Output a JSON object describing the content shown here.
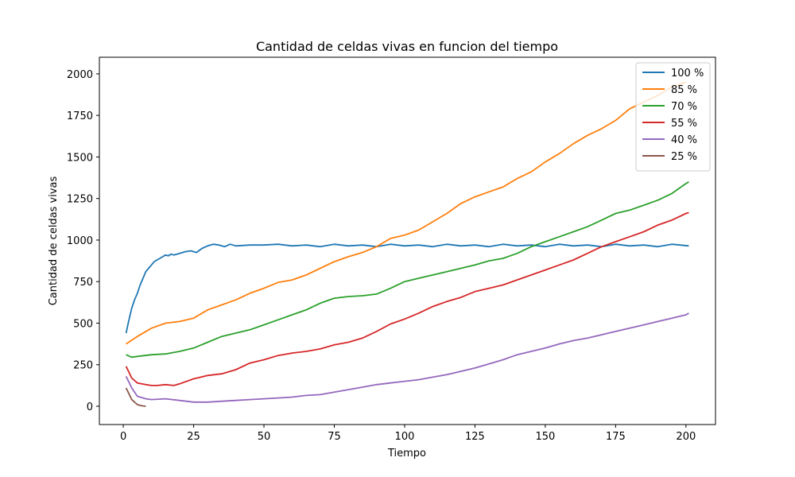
{
  "chart_data": {
    "type": "line",
    "title": "Cantidad de celdas vivas en funcion del tiempo",
    "xlabel": "Tiempo",
    "ylabel": "Cantidad de celdas vivas",
    "xlim": [
      -8.5,
      210.5
    ],
    "ylim": [
      -110,
      2100
    ],
    "xticks": [
      0,
      25,
      50,
      75,
      100,
      125,
      150,
      175,
      200
    ],
    "yticks": [
      0,
      250,
      500,
      750,
      1000,
      1250,
      1500,
      1750,
      2000
    ],
    "legend": "top-right",
    "grid": false,
    "series": [
      {
        "name": "100 %",
        "color": "#1f77b4",
        "x": [
          1,
          2,
          3,
          4,
          5,
          6,
          7,
          8,
          9,
          10,
          11,
          12,
          13,
          14,
          15,
          16,
          17,
          18,
          20,
          22,
          24,
          26,
          28,
          30,
          32,
          34,
          36,
          38,
          40,
          45,
          50,
          55,
          60,
          65,
          70,
          75,
          80,
          85,
          90,
          95,
          100,
          105,
          110,
          115,
          120,
          125,
          130,
          135,
          140,
          145,
          150,
          155,
          160,
          165,
          170,
          175,
          180,
          185,
          190,
          195,
          201
        ],
        "y": [
          440,
          520,
          590,
          640,
          680,
          730,
          770,
          810,
          830,
          850,
          870,
          880,
          890,
          900,
          910,
          905,
          915,
          910,
          920,
          930,
          935,
          925,
          950,
          965,
          975,
          970,
          960,
          975,
          965,
          970,
          970,
          975,
          965,
          970,
          960,
          975,
          965,
          970,
          960,
          975,
          965,
          970,
          960,
          975,
          965,
          970,
          960,
          975,
          965,
          970,
          960,
          975,
          965,
          970,
          960,
          975,
          965,
          970,
          960,
          975,
          965
        ]
      },
      {
        "name": "85 %",
        "color": "#ff7f0e",
        "x": [
          1,
          5,
          10,
          15,
          20,
          25,
          30,
          35,
          40,
          45,
          50,
          55,
          60,
          65,
          70,
          75,
          80,
          85,
          90,
          95,
          100,
          105,
          110,
          115,
          120,
          125,
          130,
          135,
          140,
          145,
          150,
          155,
          160,
          165,
          170,
          175,
          180,
          185,
          190,
          195,
          200
        ],
        "y": [
          375,
          420,
          470,
          500,
          510,
          530,
          580,
          610,
          640,
          680,
          710,
          745,
          760,
          790,
          830,
          870,
          900,
          925,
          960,
          1010,
          1030,
          1060,
          1110,
          1160,
          1220,
          1260,
          1290,
          1320,
          1370,
          1410,
          1470,
          1520,
          1580,
          1630,
          1670,
          1720,
          1790,
          1830,
          1870,
          1920,
          1950
        ]
      },
      {
        "name": "70 %",
        "color": "#2ca02c",
        "x": [
          1,
          3,
          5,
          10,
          15,
          20,
          25,
          30,
          35,
          40,
          45,
          50,
          55,
          60,
          65,
          70,
          75,
          80,
          85,
          90,
          95,
          100,
          105,
          110,
          115,
          120,
          125,
          130,
          135,
          140,
          145,
          150,
          155,
          160,
          165,
          170,
          175,
          180,
          185,
          190,
          195,
          200,
          201
        ],
        "y": [
          310,
          295,
          300,
          310,
          315,
          330,
          350,
          385,
          420,
          440,
          460,
          490,
          520,
          550,
          580,
          620,
          650,
          660,
          665,
          675,
          710,
          750,
          770,
          790,
          810,
          830,
          850,
          875,
          890,
          920,
          960,
          990,
          1020,
          1050,
          1080,
          1120,
          1160,
          1180,
          1210,
          1240,
          1280,
          1340,
          1350
        ]
      },
      {
        "name": "55 %",
        "color": "#d62728",
        "x": [
          1,
          3,
          5,
          8,
          10,
          12,
          15,
          18,
          20,
          25,
          30,
          35,
          40,
          45,
          50,
          55,
          60,
          65,
          70,
          75,
          80,
          85,
          90,
          95,
          100,
          105,
          110,
          115,
          120,
          125,
          130,
          135,
          140,
          145,
          150,
          155,
          160,
          165,
          170,
          175,
          180,
          185,
          190,
          195,
          200,
          201
        ],
        "y": [
          240,
          170,
          140,
          130,
          125,
          125,
          130,
          125,
          135,
          165,
          185,
          195,
          220,
          260,
          280,
          305,
          320,
          330,
          345,
          370,
          385,
          410,
          450,
          495,
          525,
          560,
          600,
          630,
          655,
          690,
          710,
          730,
          760,
          790,
          820,
          850,
          880,
          920,
          960,
          990,
          1020,
          1050,
          1090,
          1120,
          1160,
          1165
        ]
      },
      {
        "name": "40 %",
        "color": "#9467bd",
        "x": [
          1,
          3,
          5,
          8,
          10,
          15,
          20,
          25,
          30,
          35,
          40,
          45,
          50,
          55,
          60,
          65,
          70,
          75,
          80,
          85,
          90,
          95,
          100,
          105,
          110,
          115,
          120,
          125,
          130,
          135,
          140,
          145,
          150,
          155,
          160,
          165,
          170,
          175,
          180,
          185,
          190,
          195,
          200,
          201
        ],
        "y": [
          180,
          110,
          60,
          45,
          40,
          45,
          35,
          25,
          25,
          30,
          35,
          40,
          45,
          50,
          55,
          65,
          70,
          85,
          100,
          115,
          130,
          140,
          150,
          160,
          175,
          190,
          210,
          230,
          255,
          280,
          310,
          330,
          350,
          375,
          395,
          410,
          430,
          450,
          470,
          490,
          510,
          530,
          550,
          560
        ]
      },
      {
        "name": "25 %",
        "color": "#8c564b",
        "x": [
          1,
          2,
          3,
          4,
          5,
          6,
          7,
          8
        ],
        "y": [
          110,
          75,
          40,
          25,
          10,
          5,
          2,
          0
        ]
      }
    ]
  }
}
